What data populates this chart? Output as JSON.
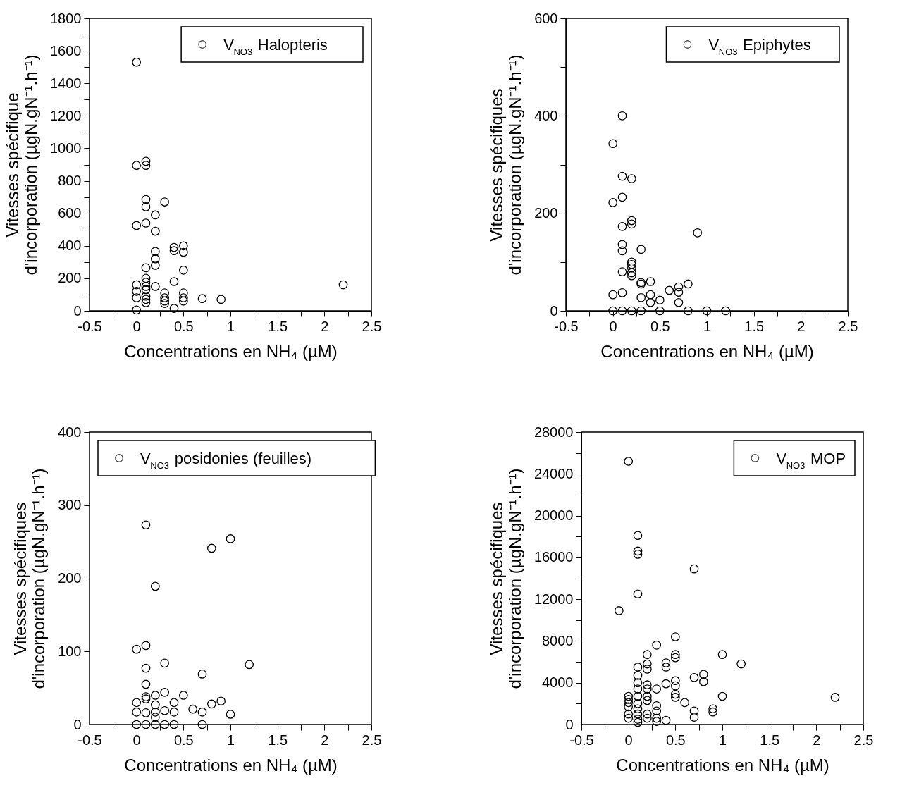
{
  "chart_data": [
    {
      "type": "scatter",
      "xlabel": "Concentrations en NH₄ (µM)",
      "ylabel": [
        "Vitesses spécifique",
        "d'incorporation (µgN.gN⁻¹.h⁻¹)"
      ],
      "legend": "top right",
      "marker": "circle",
      "grid": false,
      "xlim": [
        -0.5,
        2.5
      ],
      "ylim": [
        0,
        1800
      ],
      "xticks": [
        -0.5,
        {
          "value": -0.25,
          "label": null
        },
        0,
        {
          "value": 0.25,
          "label": null
        },
        0.5,
        {
          "value": 0.75,
          "label": null
        },
        1,
        {
          "value": 1.25,
          "label": null
        },
        1.5,
        {
          "value": 1.75,
          "label": null
        },
        2,
        {
          "value": 2.25,
          "label": null
        },
        2.5
      ],
      "yticks": [
        0,
        {
          "value": 100,
          "label": null
        },
        200,
        {
          "value": 300,
          "label": null
        },
        400,
        {
          "value": 500,
          "label": null
        },
        600,
        {
          "value": 700,
          "label": null
        },
        800,
        {
          "value": 900,
          "label": null
        },
        1000,
        {
          "value": 1100,
          "label": null
        },
        1200,
        {
          "value": 1300,
          "label": null
        },
        1400,
        {
          "value": 1500,
          "label": null
        },
        1600,
        {
          "value": 1700,
          "label": null
        },
        1800
      ],
      "series": [
        {
          "name": "V$_{NO3}$ Halopteris",
          "color": "#000000",
          "x": [
            0,
            0,
            0,
            0,
            0,
            0,
            0,
            0.1,
            0.1,
            0.1,
            0.1,
            0.1,
            0.1,
            0.1,
            0.1,
            0.1,
            0.1,
            0.1,
            0.1,
            0.1,
            0.2,
            0.2,
            0.2,
            0.2,
            0.2,
            0.2,
            0.3,
            0.3,
            0.3,
            0.3,
            0.3,
            0.4,
            0.4,
            0.4,
            0.4,
            0.5,
            0.5,
            0.5,
            0.5,
            0.5,
            0.5,
            0.7,
            0.9,
            2.2
          ],
          "values": [
            1530,
            895,
            525,
            160,
            120,
            80,
            5,
            920,
            895,
            685,
            640,
            540,
            265,
            200,
            175,
            150,
            130,
            90,
            70,
            50,
            590,
            490,
            365,
            320,
            280,
            150,
            670,
            110,
            80,
            60,
            45,
            390,
            370,
            180,
            15,
            400,
            360,
            250,
            110,
            80,
            60,
            75,
            70,
            160
          ]
        }
      ]
    },
    {
      "type": "scatter",
      "xlabel": "Concentrations en NH₄ (µM)",
      "ylabel": [
        "Vitesses spécifiques",
        "d'incorporation (µgN.gN⁻¹.h⁻¹)"
      ],
      "legend": "top right",
      "marker": "circle",
      "grid": false,
      "xlim": [
        -0.5,
        2.5
      ],
      "ylim": [
        0,
        600
      ],
      "xticks": [
        -0.5,
        {
          "value": -0.25,
          "label": null
        },
        0,
        {
          "value": 0.25,
          "label": null
        },
        0.5,
        {
          "value": 0.75,
          "label": null
        },
        1,
        {
          "value": 1.25,
          "label": null
        },
        1.5,
        {
          "value": 1.75,
          "label": null
        },
        2,
        {
          "value": 2.25,
          "label": null
        },
        2.5
      ],
      "yticks": [
        0,
        {
          "value": 100,
          "label": null
        },
        200,
        {
          "value": 300,
          "label": null
        },
        400,
        {
          "value": 500,
          "label": null
        },
        600
      ],
      "series": [
        {
          "name": "V$_{NO3}$ Epiphytes",
          "color": "#000000",
          "x": [
            0,
            0,
            0,
            0,
            0.1,
            0.1,
            0.1,
            0.1,
            0.1,
            0.1,
            0.1,
            0.1,
            0.1,
            0.2,
            0.2,
            0.2,
            0.2,
            0.2,
            0.2,
            0.2,
            0.2,
            0.2,
            0.3,
            0.3,
            0.3,
            0.3,
            0.3,
            0.4,
            0.4,
            0.4,
            0.5,
            0.5,
            0.6,
            0.7,
            0.7,
            0.7,
            0.8,
            0.8,
            0.9,
            1.0,
            1.2
          ],
          "values": [
            343,
            222,
            33,
            0,
            400,
            276,
            233,
            173,
            136,
            123,
            80,
            37,
            0,
            271,
            185,
            178,
            100,
            95,
            88,
            78,
            72,
            0,
            126,
            58,
            55,
            27,
            0,
            60,
            33,
            17,
            22,
            0,
            42,
            49,
            38,
            17,
            55,
            0,
            160,
            0,
            0
          ]
        }
      ]
    },
    {
      "type": "scatter",
      "xlabel": "Concentrations en NH₄ (µM)",
      "ylabel": [
        "Vitesses spécifiques",
        "d'incorporation (µgN.gN⁻¹.h⁻¹)"
      ],
      "legend": "top left",
      "marker": "circle",
      "grid": false,
      "xlim": [
        -0.5,
        2.5
      ],
      "ylim": [
        0,
        400
      ],
      "xticks": [
        -0.5,
        {
          "value": -0.25,
          "label": null
        },
        0,
        {
          "value": 0.25,
          "label": null
        },
        0.5,
        {
          "value": 0.75,
          "label": null
        },
        1,
        {
          "value": 1.25,
          "label": null
        },
        1.5,
        {
          "value": 1.75,
          "label": null
        },
        2,
        {
          "value": 2.25,
          "label": null
        },
        2.5
      ],
      "yticks": [
        0,
        100,
        200,
        300,
        400
      ],
      "series": [
        {
          "name": "V$_{NO3}$ posidonies (feuilles)",
          "color": "#000000",
          "x": [
            0,
            0,
            0,
            0,
            0.1,
            0.1,
            0.1,
            0.1,
            0.1,
            0.1,
            0.1,
            0.1,
            0.2,
            0.2,
            0.2,
            0.2,
            0.2,
            0.2,
            0.3,
            0.3,
            0.3,
            0.3,
            0.4,
            0.4,
            0.4,
            0.5,
            0.6,
            0.7,
            0.7,
            0.7,
            0.8,
            0.8,
            0.9,
            1.0,
            1.0,
            1.2
          ],
          "values": [
            103,
            30,
            17,
            0,
            273,
            108,
            77,
            55,
            38,
            35,
            16,
            0,
            189,
            40,
            27,
            17,
            10,
            0,
            84,
            44,
            19,
            0,
            30,
            17,
            0,
            40,
            21,
            69,
            17,
            0,
            241,
            28,
            32,
            254,
            14,
            82
          ]
        }
      ]
    },
    {
      "type": "scatter",
      "xlabel": "Concentrations en NH₄ (µM)",
      "ylabel": [
        "Vitesses spécifiques",
        "d'incorporation (µgN.gN⁻¹.h⁻¹)"
      ],
      "legend": "top right",
      "marker": "circle",
      "grid": false,
      "xlim": [
        -0.5,
        2.5
      ],
      "ylim": [
        0,
        28000
      ],
      "xticks": [
        -0.5,
        {
          "value": -0.25,
          "label": null
        },
        0,
        {
          "value": 0.25,
          "label": null
        },
        0.5,
        {
          "value": 0.75,
          "label": null
        },
        1,
        {
          "value": 1.25,
          "label": null
        },
        1.5,
        {
          "value": 1.75,
          "label": null
        },
        2,
        {
          "value": 2.25,
          "label": null
        },
        2.5
      ],
      "yticks": [
        0,
        {
          "value": 2000,
          "label": null
        },
        4000,
        {
          "value": 6000,
          "label": null
        },
        8000,
        {
          "value": 10000,
          "label": null
        },
        12000,
        {
          "value": 14000,
          "label": null
        },
        16000,
        {
          "value": 18000,
          "label": null
        },
        20000,
        {
          "value": 22000,
          "label": null
        },
        24000,
        {
          "value": 26000,
          "label": null
        },
        28000
      ],
      "series": [
        {
          "name": "V$_{NO3}$ MOP",
          "color": "#000000",
          "x": [
            -0.1,
            0,
            0,
            0,
            0,
            0,
            0,
            0,
            0.1,
            0.1,
            0.1,
            0.1,
            0.1,
            0.1,
            0.1,
            0.1,
            0.1,
            0.1,
            0.1,
            0.1,
            0.1,
            0.1,
            0.2,
            0.2,
            0.2,
            0.2,
            0.2,
            0.2,
            0.2,
            0.2,
            0.2,
            0.3,
            0.3,
            0.3,
            0.3,
            0.3,
            0.3,
            0.4,
            0.4,
            0.4,
            0.4,
            0.5,
            0.5,
            0.5,
            0.5,
            0.5,
            0.5,
            0.5,
            0.6,
            0.7,
            0.7,
            0.7,
            0.7,
            0.8,
            0.8,
            0.9,
            0.9,
            1.0,
            1.0,
            1.2,
            2.2
          ],
          "values": [
            10900,
            25200,
            2700,
            2400,
            2100,
            1700,
            1000,
            600,
            18100,
            16600,
            16300,
            12500,
            5500,
            4700,
            4000,
            3400,
            2700,
            2000,
            1500,
            1000,
            500,
            200,
            6700,
            5800,
            5300,
            3800,
            3400,
            2700,
            2300,
            1000,
            600,
            7600,
            3400,
            1800,
            1300,
            600,
            300,
            5900,
            5500,
            3900,
            400,
            8400,
            6700,
            6400,
            4200,
            3700,
            2900,
            2600,
            2100,
            14900,
            4500,
            1300,
            700,
            4800,
            4100,
            1500,
            1200,
            6700,
            2700,
            5800,
            2600
          ]
        }
      ]
    }
  ]
}
